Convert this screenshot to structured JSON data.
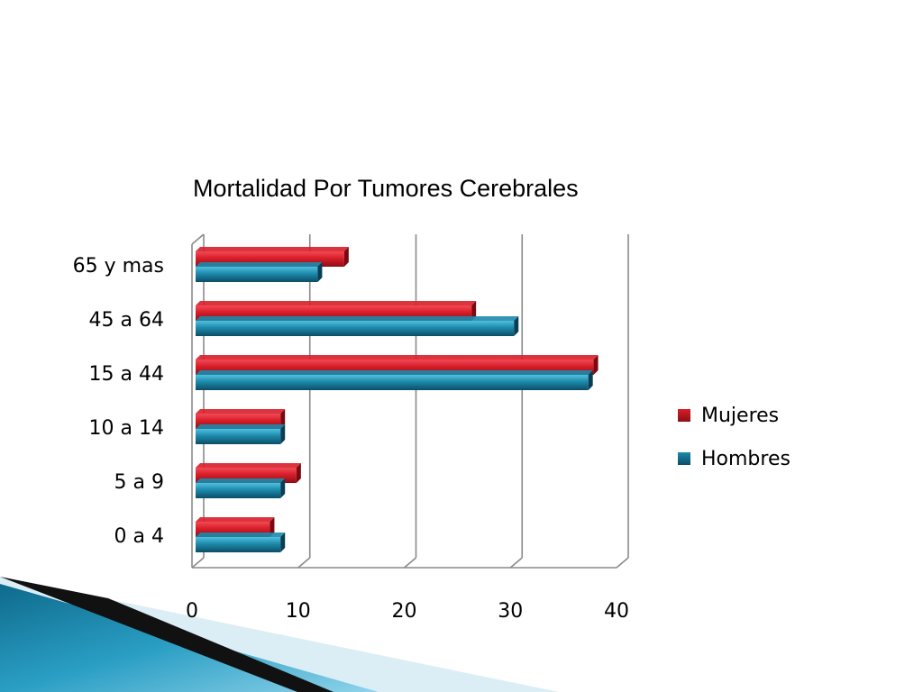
{
  "chart_data": {
    "type": "bar",
    "orientation": "horizontal",
    "title": "Mortalidad Por Tumores Cerebrales",
    "categories": [
      "65 y mas",
      "45 a 64",
      "15 a 44",
      "10 a 14",
      "5 a 9",
      "0 a 4"
    ],
    "series": [
      {
        "name": "Mujeres",
        "values": [
          14,
          26,
          37.5,
          8,
          9.5,
          7
        ]
      },
      {
        "name": "Hombres",
        "values": [
          11.5,
          30,
          37,
          8,
          8,
          8
        ]
      }
    ],
    "xlim": [
      0,
      40
    ],
    "xticks": [
      "0",
      "10",
      "20",
      "30",
      "40"
    ],
    "grid": true,
    "legend_position": "right"
  },
  "colors": {
    "mujeres": "#d81e2a",
    "hombres": "#1d8aab",
    "grid": "#8a8a8a"
  }
}
